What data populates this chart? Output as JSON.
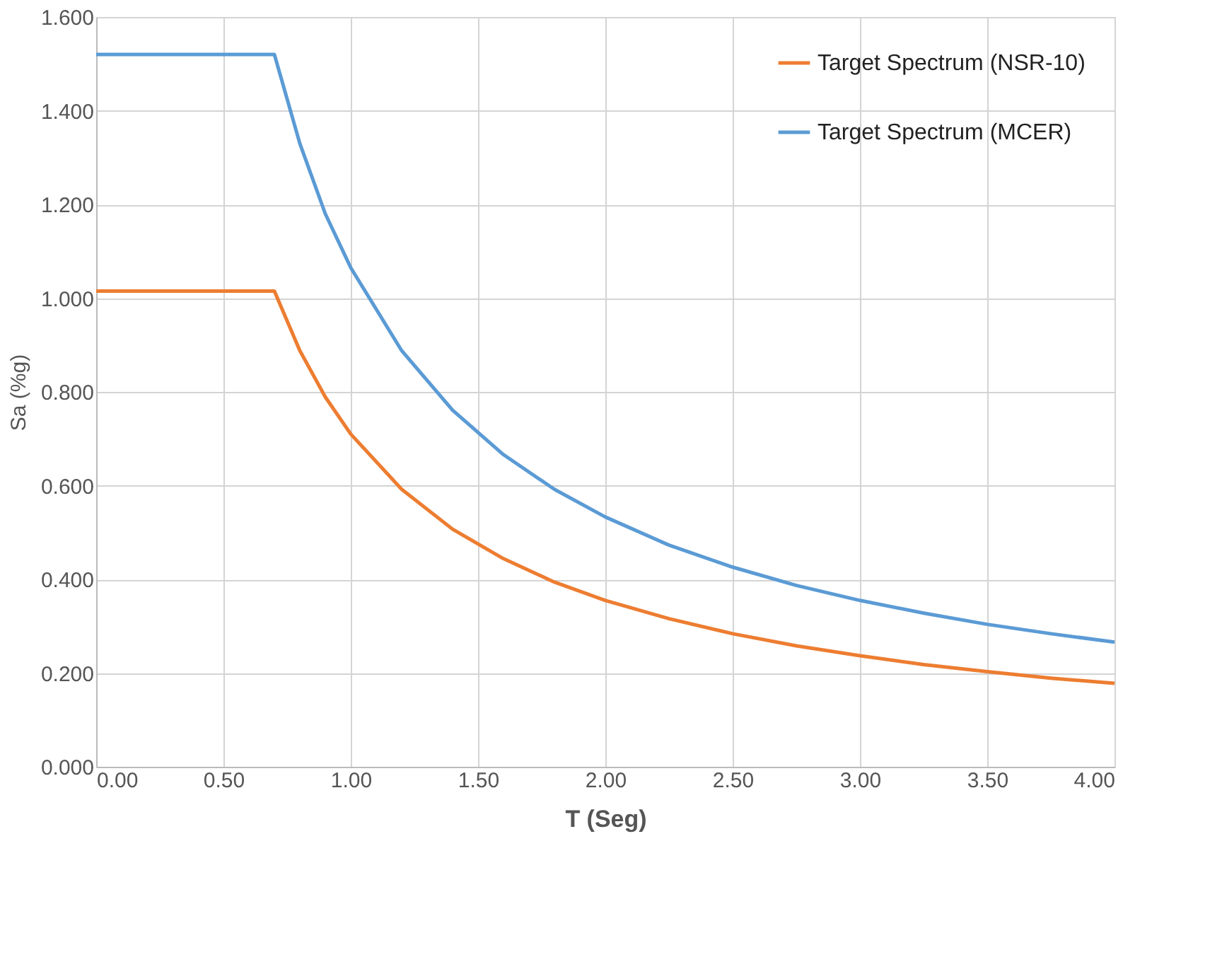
{
  "chart_data": {
    "type": "line",
    "xlabel": "T (Seg)",
    "ylabel": "Sa (%g)",
    "x": [
      0,
      0.7,
      0.8,
      0.9,
      1.0,
      1.2,
      1.4,
      1.6,
      1.8,
      2.0,
      2.25,
      2.5,
      2.75,
      3.0,
      3.25,
      3.5,
      3.75,
      4.0
    ],
    "series": [
      {
        "name": "Target Spectrum (NSR-10)",
        "color": "#ed7d31",
        "values": [
          1.015,
          1.015,
          0.888,
          0.789,
          0.71,
          0.592,
          0.507,
          0.444,
          0.394,
          0.355,
          0.316,
          0.284,
          0.258,
          0.237,
          0.218,
          0.203,
          0.189,
          0.178
        ]
      },
      {
        "name": "Target Spectrum (MCER)",
        "color": "#5b9bd5",
        "values": [
          1.52,
          1.52,
          1.33,
          1.18,
          1.065,
          0.888,
          0.761,
          0.666,
          0.592,
          0.533,
          0.473,
          0.426,
          0.387,
          0.355,
          0.328,
          0.304,
          0.284,
          0.266
        ]
      }
    ],
    "xlim": [
      0,
      4
    ],
    "ylim": [
      0,
      1.6
    ],
    "xticks": [
      {
        "value": 0,
        "label": "0.00"
      },
      {
        "value": 0.5,
        "label": "0.50"
      },
      {
        "value": 1,
        "label": "1.00"
      },
      {
        "value": 1.5,
        "label": "1.50"
      },
      {
        "value": 2,
        "label": "2.00"
      },
      {
        "value": 2.5,
        "label": "2.50"
      },
      {
        "value": 3,
        "label": "3.00"
      },
      {
        "value": 3.5,
        "label": "3.50"
      },
      {
        "value": 4,
        "label": "4.00"
      }
    ],
    "yticks": [
      {
        "value": 0,
        "label": "0.000"
      },
      {
        "value": 0.2,
        "label": "0.200"
      },
      {
        "value": 0.4,
        "label": "0.400"
      },
      {
        "value": 0.6,
        "label": "0.600"
      },
      {
        "value": 0.8,
        "label": "0.800"
      },
      {
        "value": 1,
        "label": "1.000"
      },
      {
        "value": 1.2,
        "label": "1.200"
      },
      {
        "value": 1.4,
        "label": "1.400"
      },
      {
        "value": 1.6,
        "label": "1.600"
      }
    ],
    "grid": true,
    "legend": "top right",
    "marker": "none",
    "line_style": "solid"
  }
}
